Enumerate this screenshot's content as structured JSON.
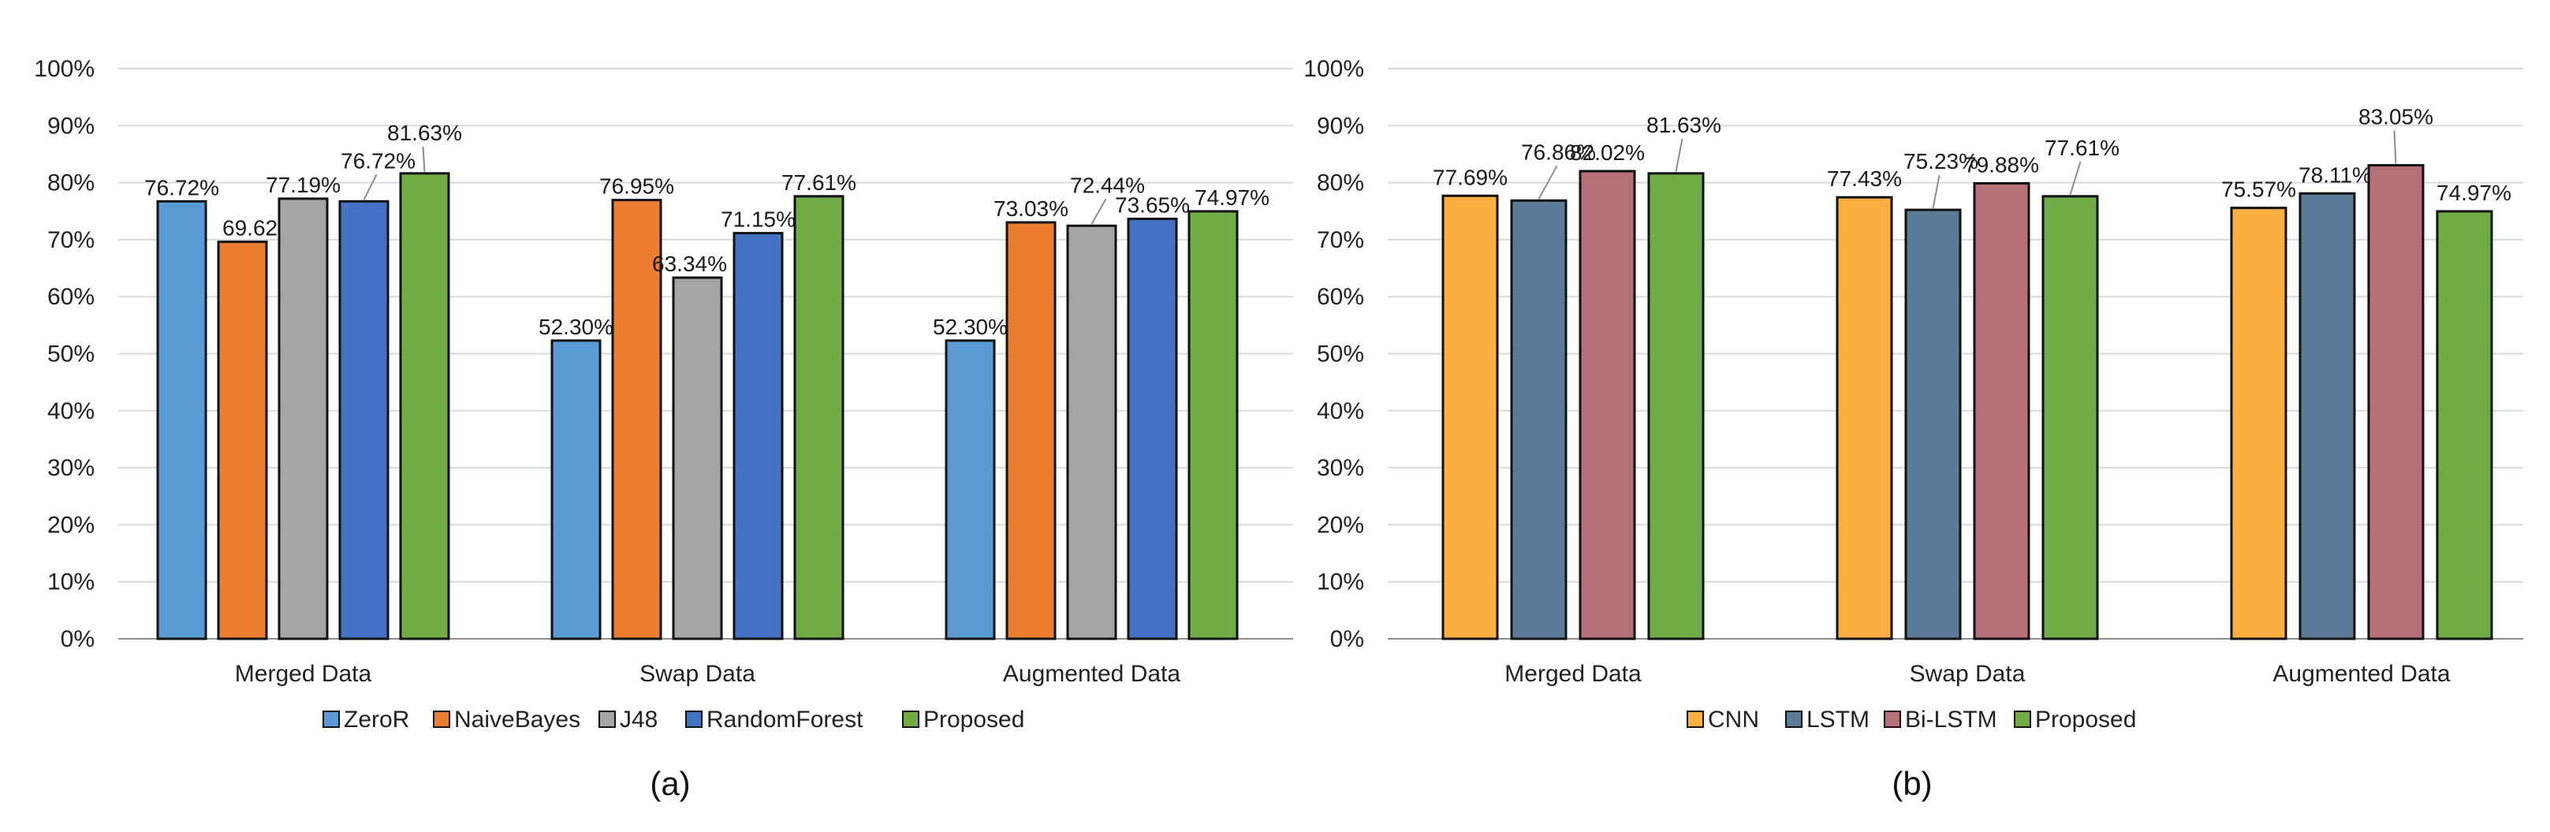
{
  "chart_data": [
    {
      "type": "bar",
      "panel": "a",
      "caption": "(a)",
      "categories": [
        "Merged Data",
        "Swap Data",
        "Augmented Data"
      ],
      "ylim": [
        0,
        100
      ],
      "yticks": [
        "0%",
        "10%",
        "20%",
        "30%",
        "40%",
        "50%",
        "60%",
        "70%",
        "80%",
        "90%",
        "100%"
      ],
      "series": [
        {
          "name": "ZeroR",
          "color": "#5B9BD5",
          "values": [
            76.72,
            52.3,
            52.3
          ],
          "labels": [
            "76.72%",
            "52.30%",
            "52.30%"
          ]
        },
        {
          "name": "NaiveBayes",
          "color": "#ED7D31",
          "values": [
            69.62,
            76.95,
            73.03
          ],
          "labels": [
            "69.62%",
            "76.95%",
            "73.03%"
          ]
        },
        {
          "name": "J48",
          "color": "#A5A5A5",
          "values": [
            77.19,
            63.34,
            72.44
          ],
          "labels": [
            "77.19%",
            "63.34%",
            "72.44%"
          ]
        },
        {
          "name": "RandomForest",
          "color": "#4472C4",
          "values": [
            76.72,
            71.15,
            73.65
          ],
          "labels": [
            "76.72%",
            "71.15%",
            "73.65%"
          ]
        },
        {
          "name": "Proposed",
          "color": "#70AD47",
          "values": [
            81.63,
            77.61,
            74.97
          ],
          "labels": [
            "81.63%",
            "77.61%",
            "74.97%"
          ]
        }
      ]
    },
    {
      "type": "bar",
      "panel": "b",
      "caption": "(b)",
      "categories": [
        "Merged Data",
        "Swap Data",
        "Augmented Data"
      ],
      "ylim": [
        0,
        100
      ],
      "yticks": [
        "0%",
        "10%",
        "20%",
        "30%",
        "40%",
        "50%",
        "60%",
        "70%",
        "80%",
        "90%",
        "100%"
      ],
      "series": [
        {
          "name": "CNN",
          "color": "#FBAF41",
          "values": [
            77.69,
            77.43,
            75.57
          ],
          "labels": [
            "77.69%",
            "77.43%",
            "75.57%"
          ]
        },
        {
          "name": "LSTM",
          "color": "#5B7C99",
          "values": [
            76.86,
            75.23,
            78.11
          ],
          "labels": [
            "76.86%",
            "75.23%",
            "78.11%"
          ]
        },
        {
          "name": "Bi-LSTM",
          "color": "#B57175",
          "values": [
            82.02,
            79.88,
            83.05
          ],
          "labels": [
            "82.02%",
            "79.88%",
            "83.05%"
          ]
        },
        {
          "name": "Proposed",
          "color": "#70AD47",
          "values": [
            81.63,
            77.61,
            74.97
          ],
          "labels": [
            "81.63%",
            "77.61%",
            "74.97%"
          ]
        }
      ]
    }
  ]
}
